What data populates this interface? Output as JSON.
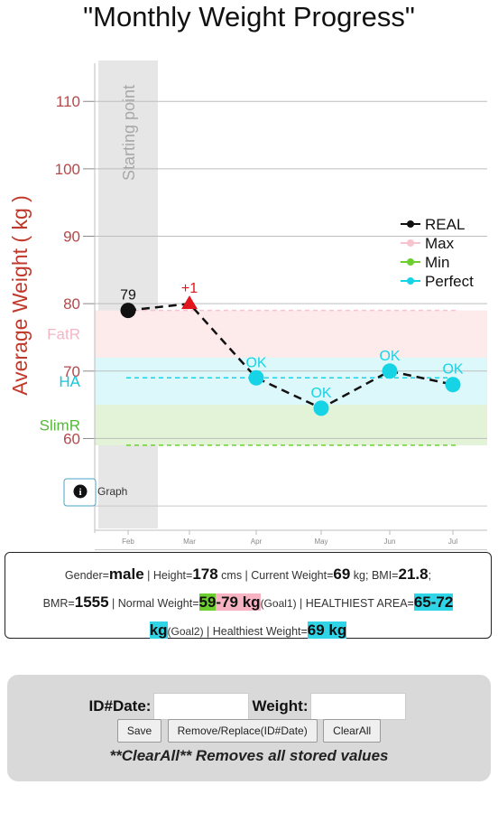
{
  "title": "\"Monthly Weight Progress\"",
  "chart_data": {
    "type": "line",
    "ylabel": "Average Weight ( kg )",
    "xlabel": "",
    "categories": [
      "Feb",
      "Mar",
      "Apr",
      "May",
      "Jun",
      "Jul"
    ],
    "ylim": [
      48,
      117
    ],
    "yticks": [
      60,
      70,
      80,
      90,
      100,
      110
    ],
    "series": [
      {
        "name": "REAL",
        "values": [
          79,
          80,
          69,
          64.5,
          70,
          68
        ]
      }
    ],
    "point_labels": [
      "79",
      "+1",
      "OK",
      "OK",
      "OK",
      "OK"
    ],
    "point_label_colors": [
      "#111111",
      "#e0161c",
      "#16d4e6",
      "#16d4e6",
      "#16d4e6",
      "#16d4e6"
    ],
    "point_colors": [
      "#111111",
      "#e0161c",
      "#16d4e6",
      "#16d4e6",
      "#16d4e6",
      "#16d4e6"
    ],
    "point_shapes": [
      "circle",
      "triangle",
      "circle",
      "circle",
      "circle",
      "circle"
    ],
    "bands": [
      {
        "label": "FatR",
        "from": 72,
        "to": 79,
        "color": "#fdeaea",
        "label_color": "#f4b6c4"
      },
      {
        "label": "HA",
        "from": 65,
        "to": 72,
        "color": "#dcf8fb",
        "label_color": "#16c4dc"
      },
      {
        "label": "SlimR",
        "from": 59,
        "to": 65,
        "color": "#e2f3d8",
        "label_color": "#56b83a"
      }
    ],
    "reference_lines": [
      {
        "name": "Max",
        "value": 79,
        "color": "#f7c3cf"
      },
      {
        "name": "Perfect",
        "value": 69,
        "color": "#16d4e6"
      },
      {
        "name": "Min",
        "value": 59,
        "color": "#6ccf2f"
      }
    ],
    "legend": [
      {
        "name": "REAL",
        "color": "#111111"
      },
      {
        "name": "Max",
        "color": "#f7c3cf"
      },
      {
        "name": "Min",
        "color": "#6ccf2f"
      },
      {
        "name": "Perfect",
        "color": "#16d4e6"
      }
    ],
    "legend_position": "right",
    "highlight": {
      "category": "Feb",
      "label": "Starting point"
    },
    "grid": true,
    "info_button_label": "Graph",
    "colors": {
      "axis_tick": "#b54848",
      "ylabel": "#c0392b"
    }
  },
  "info": {
    "gender_label": "Gender=",
    "gender": "male",
    "height_label": " | Height=",
    "height": "178",
    "height_unit": " cms | Current Weight=",
    "current_weight": "69",
    "current_unit": " kg; BMI=",
    "bmi": "21.8",
    "bmi_sep": ";",
    "bmr_label": "BMR=",
    "bmr": "1555",
    "normal_label": " | Normal Weight=",
    "normal_min": "59",
    "normal_max": "-79 kg",
    "goal1": "(Goal1)",
    "healthiest_area_label": " | HEALTHIEST AREA=",
    "healthiest_area": "65-72",
    "healthiest_area_unit": "kg",
    "goal2": "(Goal2)",
    "healthiest_weight_label": " | Healthiest Weight=",
    "healthiest_weight": "69 kg"
  },
  "form": {
    "id_date_label": "ID#Date:",
    "weight_label": "Weight:",
    "id_date_value": "",
    "weight_value": "",
    "save_label": "Save",
    "remove_label": "Remove/Replace(ID#Date)",
    "clear_label": "ClearAll",
    "note": "**ClearAll** Removes all stored values"
  }
}
